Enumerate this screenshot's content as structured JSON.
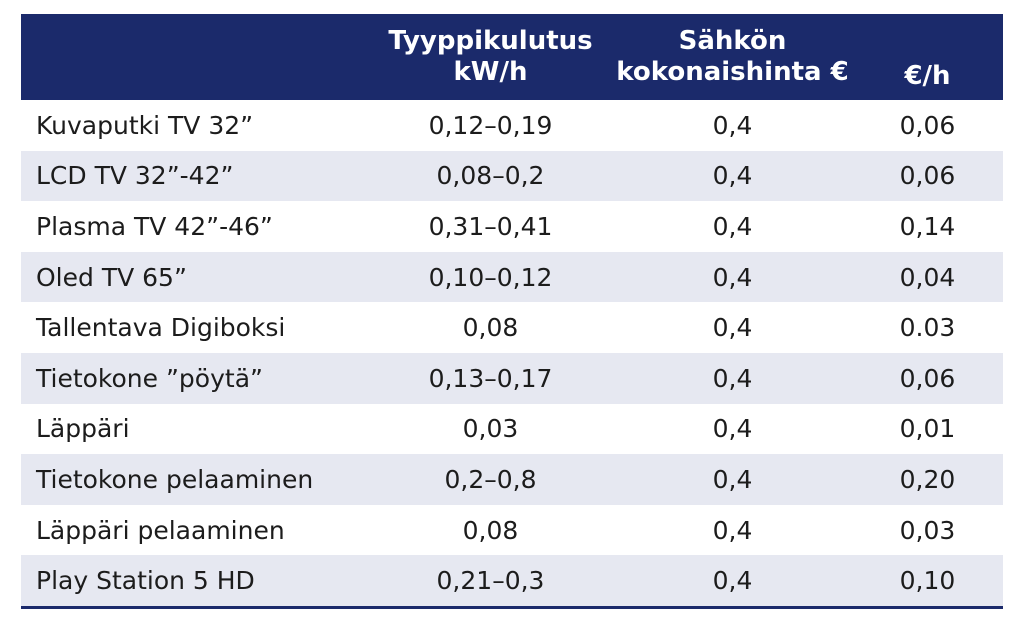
{
  "table": {
    "headers": {
      "device": "",
      "kwh_line1": "Tyyppikulutus",
      "kwh_line2": "kW/h",
      "price_line1": "Sähkön",
      "price_line2": "kokonaishinta €",
      "eur_per_hour": "€/h"
    },
    "rows": [
      {
        "device": "Kuvaputki TV 32”",
        "kwh": "0,12–0,19",
        "price": "0,4",
        "eur_h": "0,06"
      },
      {
        "device": "LCD TV 32”-42”",
        "kwh": "0,08–0,2",
        "price": "0,4",
        "eur_h": "0,06"
      },
      {
        "device": "Plasma TV 42”-46”",
        "kwh": "0,31–0,41",
        "price": "0,4",
        "eur_h": "0,14"
      },
      {
        "device": "Oled TV 65”",
        "kwh": "0,10–0,12",
        "price": "0,4",
        "eur_h": "0,04"
      },
      {
        "device": "Tallentava Digiboksi",
        "kwh": "0,08",
        "price": "0,4",
        "eur_h": "0.03"
      },
      {
        "device": "Tietokone ”pöytä”",
        "kwh": "0,13–0,17",
        "price": "0,4",
        "eur_h": "0,06"
      },
      {
        "device": "Läppäri",
        "kwh": "0,03",
        "price": "0,4",
        "eur_h": "0,01"
      },
      {
        "device": "Tietokone pelaaminen",
        "kwh": "0,2–0,8",
        "price": "0,4",
        "eur_h": "0,20"
      },
      {
        "device": "Läppäri pelaaminen",
        "kwh": "0,08",
        "price": "0,4",
        "eur_h": "0,03"
      },
      {
        "device": "Play Station 5 HD",
        "kwh": "0,21–0,3",
        "price": "0,4",
        "eur_h": "0,10"
      }
    ]
  },
  "colors": {
    "header_bg": "#1b2a6b",
    "stripe_bg": "#e6e8f1"
  }
}
